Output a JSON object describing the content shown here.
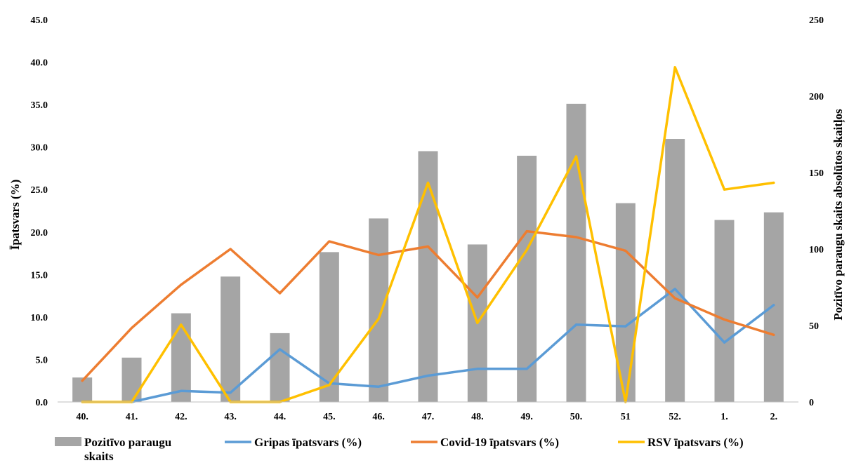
{
  "chart_data": {
    "type": "bar",
    "categories": [
      "40.",
      "41.",
      "42.",
      "43.",
      "44.",
      "45.",
      "46.",
      "47.",
      "48.",
      "49.",
      "50.",
      "51",
      "52.",
      "1.",
      "2."
    ],
    "series": [
      {
        "name": "Pozitīvo paraugu skaits",
        "type": "bar",
        "axis": "right",
        "color": "#a5a5a5",
        "values": [
          16,
          29,
          58,
          82,
          45,
          98,
          120,
          164,
          103,
          161,
          195,
          130,
          172,
          119,
          124
        ]
      },
      {
        "name": "Gripas īpatsvars (%)",
        "type": "line",
        "axis": "left",
        "color": "#5b9bd5",
        "values": [
          null,
          0.0,
          1.3,
          1.1,
          6.2,
          2.2,
          1.8,
          3.1,
          3.9,
          3.9,
          9.1,
          8.9,
          13.3,
          7.0,
          11.4
        ]
      },
      {
        "name": "Covid-19 īpatsvars (%)",
        "type": "line",
        "axis": "left",
        "color": "#ed7d31",
        "values": [
          2.5,
          8.7,
          13.8,
          18.0,
          12.8,
          18.9,
          17.3,
          18.3,
          12.3,
          20.1,
          19.4,
          17.8,
          12.2,
          9.7,
          7.9
        ]
      },
      {
        "name": "RSV īpatsvars (%)",
        "type": "line",
        "axis": "left",
        "color": "#ffc000",
        "values": [
          0.0,
          0.0,
          9.1,
          0.0,
          0.0,
          2.0,
          9.8,
          25.8,
          9.3,
          17.9,
          28.9,
          0.0,
          39.4,
          25.0,
          25.8
        ]
      }
    ],
    "ylabel": "Īpatsvars (%)",
    "y2label": "Pozitīvo paraugu skaits absolūtos skaitļos",
    "ylim": [
      0,
      45
    ],
    "yticks": [
      "0.0",
      "5.0",
      "10.0",
      "15.0",
      "20.0",
      "25.0",
      "30.0",
      "35.0",
      "40.0",
      "45.0"
    ],
    "y2lim": [
      0,
      250
    ],
    "y2ticks": [
      "0",
      "50",
      "100",
      "150",
      "200",
      "250"
    ],
    "grid": false,
    "legend_position": "bottom",
    "legend": [
      {
        "label_lines": [
          "Pozitīvo paraugu",
          "skaits"
        ],
        "series": 0
      },
      {
        "label_lines": [
          "Gripas īpatsvars (%)"
        ],
        "series": 1
      },
      {
        "label_lines": [
          "Covid-19 īpatsvars (%)"
        ],
        "series": 2
      },
      {
        "label_lines": [
          "RSV īpatsvars (%)"
        ],
        "series": 3
      }
    ]
  }
}
